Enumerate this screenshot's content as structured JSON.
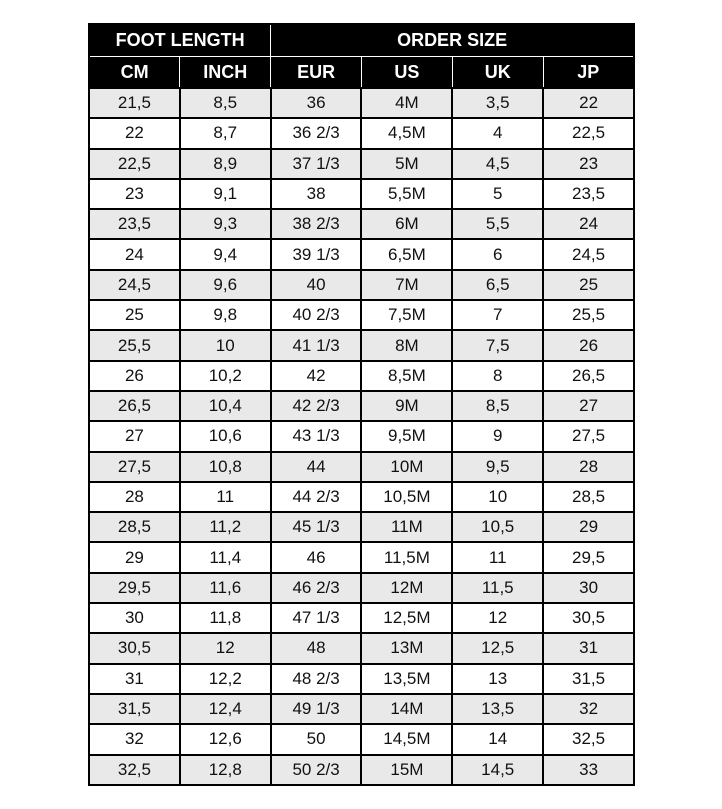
{
  "header": {
    "groups": [
      "FOOT LENGTH",
      "ORDER SIZE"
    ],
    "columns": [
      "CM",
      "INCH",
      "EUR",
      "US",
      "UK",
      "JP"
    ]
  },
  "rows": [
    [
      "21,5",
      "8,5",
      "36",
      "4M",
      "3,5",
      "22"
    ],
    [
      "22",
      "8,7",
      "36 2/3",
      "4,5M",
      "4",
      "22,5"
    ],
    [
      "22,5",
      "8,9",
      "37 1/3",
      "5M",
      "4,5",
      "23"
    ],
    [
      "23",
      "9,1",
      "38",
      "5,5M",
      "5",
      "23,5"
    ],
    [
      "23,5",
      "9,3",
      "38 2/3",
      "6M",
      "5,5",
      "24"
    ],
    [
      "24",
      "9,4",
      "39 1/3",
      "6,5M",
      "6",
      "24,5"
    ],
    [
      "24,5",
      "9,6",
      "40",
      "7M",
      "6,5",
      "25"
    ],
    [
      "25",
      "9,8",
      "40 2/3",
      "7,5M",
      "7",
      "25,5"
    ],
    [
      "25,5",
      "10",
      "41 1/3",
      "8M",
      "7,5",
      "26"
    ],
    [
      "26",
      "10,2",
      "42",
      "8,5M",
      "8",
      "26,5"
    ],
    [
      "26,5",
      "10,4",
      "42 2/3",
      "9M",
      "8,5",
      "27"
    ],
    [
      "27",
      "10,6",
      "43 1/3",
      "9,5M",
      "9",
      "27,5"
    ],
    [
      "27,5",
      "10,8",
      "44",
      "10M",
      "9,5",
      "28"
    ],
    [
      "28",
      "11",
      "44 2/3",
      "10,5M",
      "10",
      "28,5"
    ],
    [
      "28,5",
      "11,2",
      "45 1/3",
      "11M",
      "10,5",
      "29"
    ],
    [
      "29",
      "11,4",
      "46",
      "11,5M",
      "11",
      "29,5"
    ],
    [
      "29,5",
      "11,6",
      "46 2/3",
      "12M",
      "11,5",
      "30"
    ],
    [
      "30",
      "11,8",
      "47 1/3",
      "12,5M",
      "12",
      "30,5"
    ],
    [
      "30,5",
      "12",
      "48",
      "13M",
      "12,5",
      "31"
    ],
    [
      "31",
      "12,2",
      "48 2/3",
      "13,5M",
      "13",
      "31,5"
    ],
    [
      "31,5",
      "12,4",
      "49 1/3",
      "14M",
      "13,5",
      "32"
    ],
    [
      "32",
      "12,6",
      "50",
      "14,5M",
      "14",
      "32,5"
    ],
    [
      "32,5",
      "12,8",
      "50 2/3",
      "15M",
      "14,5",
      "33"
    ]
  ],
  "colors": {
    "header_bg": "#000000",
    "row_alt": "#e9e9e9"
  }
}
